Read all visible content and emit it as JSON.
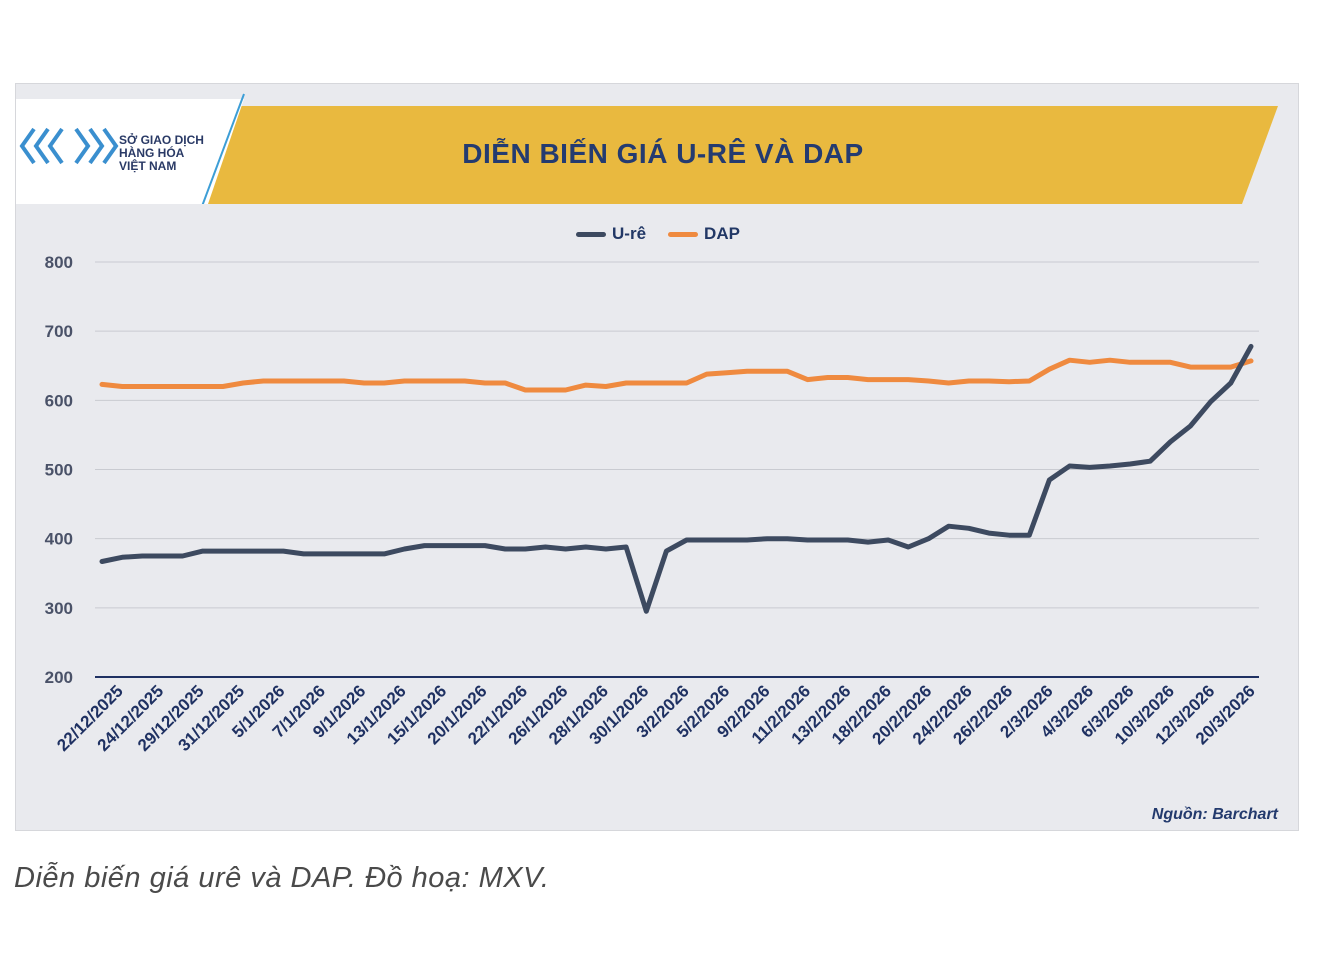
{
  "logo": {
    "line1": "SỞ GIAO DỊCH",
    "line2": "HÀNG HÓA",
    "line3": "VIỆT NAM"
  },
  "source_label": "Nguồn: Barchart",
  "caption": "Diễn biến giá urê và DAP. Đồ hoạ: MXV.",
  "colors": {
    "banner": "#e9b93f",
    "ure": "#3d4a60",
    "dap": "#ef8a3f",
    "title": "#243b70"
  },
  "chart_data": {
    "type": "line",
    "title": "DIỄN BIẾN GIÁ U-RÊ VÀ DAP",
    "legend_position": "top-center",
    "ylim": [
      200,
      800
    ],
    "yticks": [
      200,
      300,
      400,
      500,
      600,
      700,
      800
    ],
    "grid": true,
    "xtick_labels": [
      "22/12/2025",
      "24/12/2025",
      "29/12/2025",
      "31/12/2025",
      "5/1/2026",
      "7/1/2026",
      "9/1/2026",
      "13/1/2026",
      "15/1/2026",
      "20/1/2026",
      "22/1/2026",
      "26/1/2026",
      "28/1/2026",
      "30/1/2026",
      "3/2/2026",
      "5/2/2026",
      "9/2/2026",
      "11/2/2026",
      "13/2/2026",
      "18/2/2026",
      "20/2/2026",
      "24/2/2026",
      "26/2/2026",
      "2/3/2026",
      "4/3/2026",
      "6/3/2026",
      "10/3/2026",
      "12/3/2026",
      "20/3/2026"
    ],
    "series": [
      {
        "name": "U-rê",
        "values": [
          367,
          373,
          375,
          375,
          375,
          382,
          382,
          382,
          382,
          382,
          378,
          378,
          378,
          378,
          378,
          385,
          390,
          390,
          390,
          390,
          385,
          385,
          388,
          385,
          388,
          385,
          388,
          295,
          382,
          398,
          398,
          398,
          398,
          400,
          400,
          398,
          398,
          398,
          395,
          398,
          388,
          400,
          418,
          415,
          408,
          405,
          405,
          485,
          505,
          503,
          505,
          508,
          512,
          540,
          563,
          598,
          625,
          678
        ]
      },
      {
        "name": "DAP",
        "values": [
          623,
          620,
          620,
          620,
          620,
          620,
          620,
          625,
          628,
          628,
          628,
          628,
          628,
          625,
          625,
          628,
          628,
          628,
          628,
          625,
          625,
          615,
          615,
          615,
          622,
          620,
          625,
          625,
          625,
          625,
          638,
          640,
          642,
          642,
          642,
          630,
          633,
          633,
          630,
          630,
          630,
          628,
          625,
          628,
          628,
          627,
          628,
          645,
          658,
          655,
          658,
          655,
          655,
          655,
          648,
          648,
          648,
          657
        ]
      }
    ]
  }
}
